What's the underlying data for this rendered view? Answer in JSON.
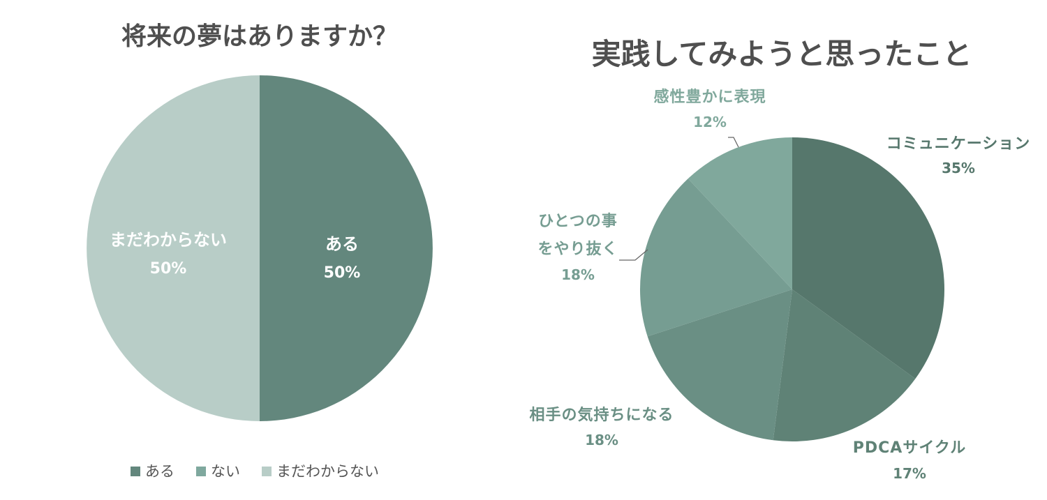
{
  "chart_data": [
    {
      "type": "pie",
      "title": "将来の夢はありますか？",
      "categories": [
        "ある",
        "ない",
        "まだわからない"
      ],
      "values": [
        50,
        0,
        50
      ],
      "data_labels": [
        {
          "name": "ある",
          "value": "50%"
        },
        {
          "name": "まだわからない",
          "value": "50%"
        }
      ],
      "colors": [
        "#63877d",
        "#7fa89e",
        "#b8cdc7"
      ],
      "legend": {
        "placement": "bottom",
        "entries": [
          "ある",
          "ない",
          "まだわからない"
        ]
      }
    },
    {
      "type": "pie",
      "title": "実践してみようと思ったこと",
      "categories": [
        "コミュニケーション",
        "PDCAサイクル",
        "相手の気持ちになる",
        "ひとつの事をやり抜く",
        "感性豊かに表現"
      ],
      "values": [
        35,
        17,
        18,
        18,
        12
      ],
      "data_labels": [
        {
          "lines": [
            "コミュニケーション"
          ],
          "value": "35%"
        },
        {
          "lines": [
            "PDCAサイクル"
          ],
          "value": "17%"
        },
        {
          "lines": [
            "相手の気持ちになる"
          ],
          "value": "18%"
        },
        {
          "lines": [
            "ひとつの事",
            "をやり抜く"
          ],
          "value": "18%"
        },
        {
          "lines": [
            "感性豊かに表現"
          ],
          "value": "12%"
        }
      ],
      "colors": [
        "#56776c",
        "#5f8276",
        "#6a8f84",
        "#769d92",
        "#80a89c"
      ],
      "label_colors": [
        "#56776c",
        "#5f8276",
        "#6a8f84",
        "#769d92",
        "#80a89c"
      ]
    }
  ]
}
